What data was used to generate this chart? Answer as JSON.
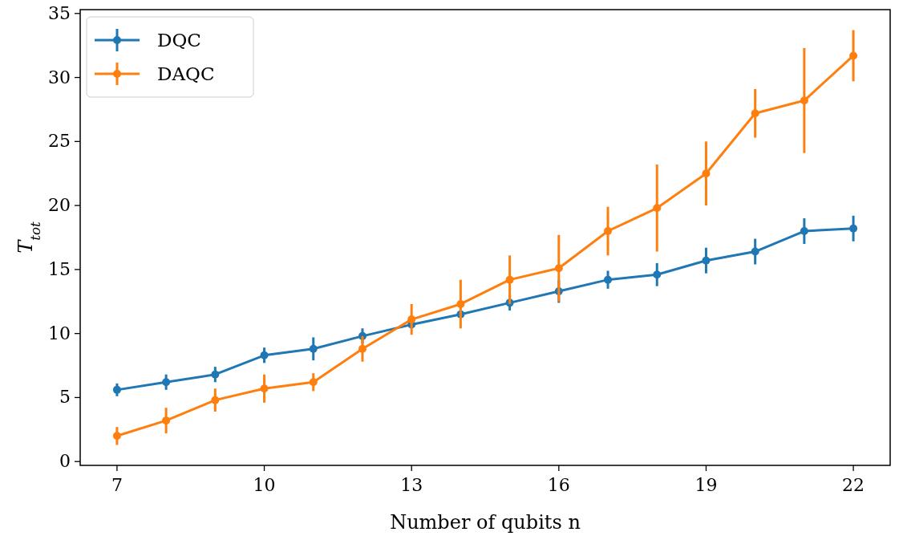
{
  "chart_data": {
    "type": "line",
    "xlabel": "Number of qubits n",
    "ylabel": "T$_{tot}$",
    "x": [
      7,
      8,
      9,
      10,
      11,
      12,
      13,
      14,
      15,
      16,
      17,
      18,
      19,
      20,
      21,
      22
    ],
    "series": [
      {
        "name": "DQC",
        "color": "#1f77b4",
        "values": [
          5.6,
          6.2,
          6.8,
          8.3,
          8.8,
          9.8,
          10.7,
          11.5,
          12.4,
          13.3,
          14.2,
          14.6,
          15.7,
          16.4,
          18.0,
          18.2
        ],
        "errors": [
          0.5,
          0.6,
          0.6,
          0.6,
          0.9,
          0.6,
          null,
          null,
          0.6,
          0.9,
          0.7,
          0.9,
          1.0,
          1.0,
          1.0,
          1.0
        ]
      },
      {
        "name": "DAQC",
        "color": "#ff7f0e",
        "values": [
          2.0,
          3.2,
          4.8,
          5.7,
          6.2,
          8.8,
          11.1,
          12.3,
          14.2,
          15.1,
          18.0,
          19.8,
          22.5,
          27.2,
          28.2,
          31.7
        ],
        "errors": [
          0.7,
          1.0,
          0.9,
          1.1,
          0.7,
          1.0,
          1.2,
          1.9,
          1.9,
          2.6,
          1.9,
          3.4,
          2.5,
          1.9,
          4.1,
          2.0
        ]
      }
    ],
    "xlim": [
      6.25,
      22.75
    ],
    "xticks": [
      7,
      10,
      13,
      16,
      19,
      22
    ],
    "ylim": [
      -0.3,
      35.3
    ],
    "yticks": [
      0,
      5,
      10,
      15,
      20,
      25,
      30,
      35
    ],
    "grid": false,
    "legend": "top left",
    "marker": "circle",
    "line_style": "solid"
  }
}
